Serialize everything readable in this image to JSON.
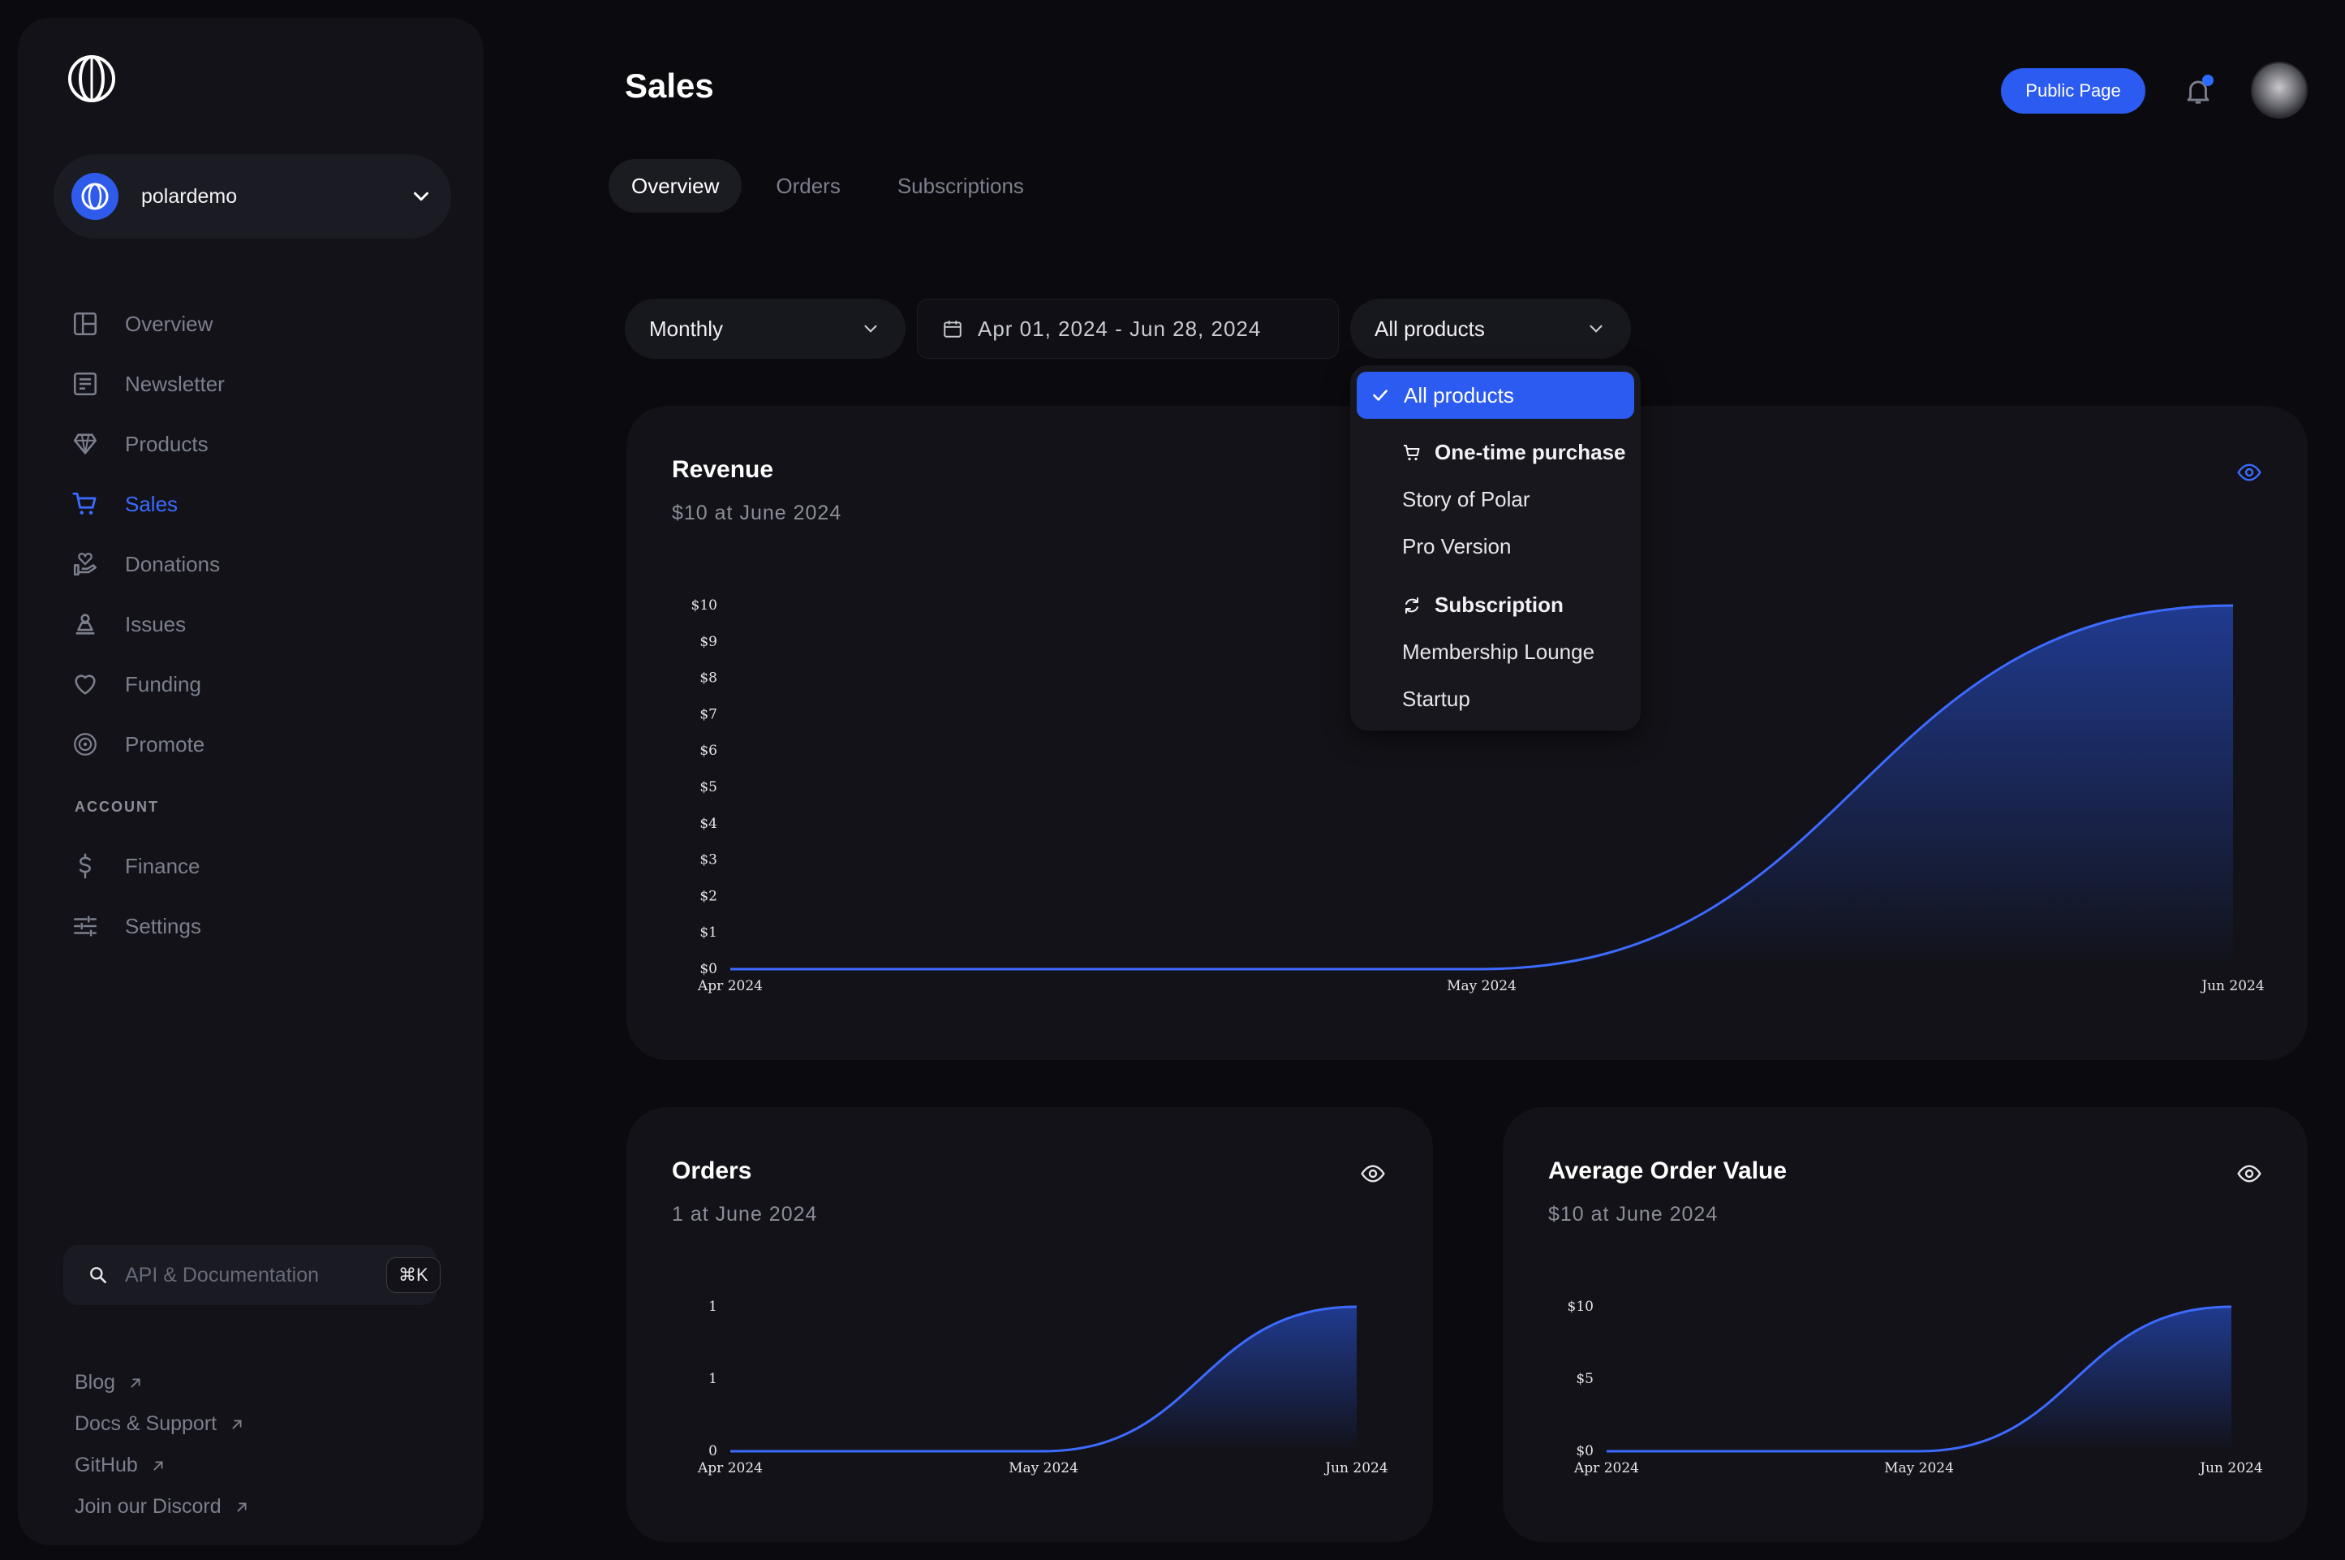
{
  "sidebar": {
    "org_name": "polardemo",
    "nav": [
      {
        "label": "Overview",
        "icon": "layout-icon",
        "active": false
      },
      {
        "label": "Newsletter",
        "icon": "newsletter-icon",
        "active": false
      },
      {
        "label": "Products",
        "icon": "diamond-icon",
        "active": false
      },
      {
        "label": "Sales",
        "icon": "cart-icon",
        "active": true
      },
      {
        "label": "Donations",
        "icon": "donation-icon",
        "active": false
      },
      {
        "label": "Issues",
        "icon": "issues-icon",
        "active": false
      },
      {
        "label": "Funding",
        "icon": "heart-icon",
        "active": false
      },
      {
        "label": "Promote",
        "icon": "promote-icon",
        "active": false
      }
    ],
    "account_label": "ACCOUNT",
    "account_nav": [
      {
        "label": "Finance",
        "icon": "dollar-icon"
      },
      {
        "label": "Settings",
        "icon": "sliders-icon"
      }
    ],
    "search_placeholder": "API & Documentation",
    "search_shortcut": "⌘K",
    "links": [
      {
        "label": "Blog"
      },
      {
        "label": "Docs & Support"
      },
      {
        "label": "GitHub"
      },
      {
        "label": "Join our Discord"
      }
    ]
  },
  "header": {
    "title": "Sales",
    "public_page_label": "Public Page"
  },
  "tabs": [
    {
      "label": "Overview",
      "active": true
    },
    {
      "label": "Orders",
      "active": false
    },
    {
      "label": "Subscriptions",
      "active": false
    }
  ],
  "filters": {
    "interval": "Monthly",
    "date_range": "Apr 01, 2024 - Jun 28, 2024",
    "product": "All products"
  },
  "dropdown": {
    "selected": "All products",
    "groups": [
      {
        "label": "One-time purchase",
        "icon": "cart-icon",
        "items": [
          "Story of Polar",
          "Pro Version"
        ]
      },
      {
        "label": "Subscription",
        "icon": "refresh-icon",
        "items": [
          "Membership Lounge",
          "Startup"
        ]
      }
    ]
  },
  "cards": {
    "revenue": {
      "title": "Revenue",
      "subtitle": "$10 at June 2024"
    },
    "orders": {
      "title": "Orders",
      "subtitle": "1 at June 2024"
    },
    "aov": {
      "title": "Average Order Value",
      "subtitle": "$10 at June 2024"
    }
  },
  "colors": {
    "accent": "#2b5bf0",
    "line": "#3d6bff",
    "background": "#0b0b0f",
    "card": "#121218"
  },
  "chart_data": [
    {
      "type": "area",
      "title": "Revenue",
      "x": [
        "Apr 2024",
        "May 2024",
        "Jun 2024"
      ],
      "y": [
        0,
        0,
        10
      ],
      "y_ticks": [
        "$0",
        "$1",
        "$2",
        "$3",
        "$4",
        "$5",
        "$6",
        "$7",
        "$8",
        "$9",
        "$10"
      ],
      "ylim": [
        0,
        10
      ]
    },
    {
      "type": "area",
      "title": "Orders",
      "x": [
        "Apr 2024",
        "May 2024",
        "Jun 2024"
      ],
      "y": [
        0,
        0,
        1
      ],
      "y_ticks": [
        "0",
        "1",
        "1"
      ],
      "ylim": [
        0,
        1
      ]
    },
    {
      "type": "area",
      "title": "Average Order Value",
      "x": [
        "Apr 2024",
        "May 2024",
        "Jun 2024"
      ],
      "y": [
        0,
        0,
        10
      ],
      "y_ticks": [
        "$0",
        "$5",
        "$10"
      ],
      "ylim": [
        0,
        10
      ]
    }
  ]
}
